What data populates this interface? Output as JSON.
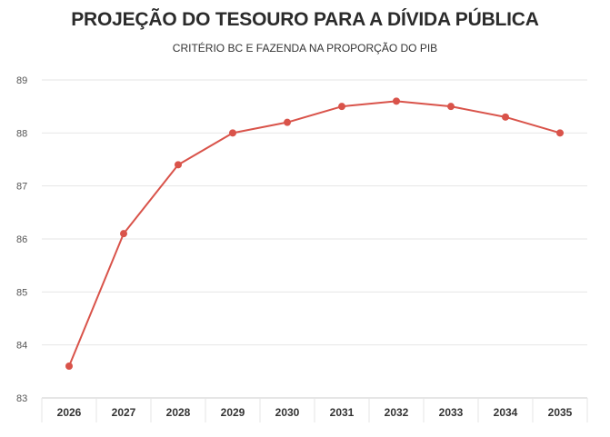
{
  "chart_data": {
    "type": "line",
    "title": "PROJEÇÃO DO TESOURO PARA A DÍVIDA PÚBLICA",
    "subtitle": "CRITÉRIO BC E FAZENDA NA PROPORÇÃO DO PIB",
    "xlabel": "",
    "ylabel": "",
    "categories": [
      "2026",
      "2027",
      "2028",
      "2029",
      "2030",
      "2031",
      "2032",
      "2033",
      "2034",
      "2035"
    ],
    "series": [
      {
        "values": [
          83.6,
          86.1,
          87.4,
          88.0,
          88.2,
          88.5,
          88.6,
          88.5,
          88.3,
          88.0
        ]
      }
    ],
    "ylim": [
      83,
      89
    ],
    "yticks": [
      "83",
      "84",
      "85",
      "86",
      "87",
      "88",
      "89"
    ],
    "grid": true,
    "legend": "none",
    "colors": {
      "line": "#d9534a",
      "grid": "#e6e6e6",
      "axis": "#cccccc"
    }
  }
}
